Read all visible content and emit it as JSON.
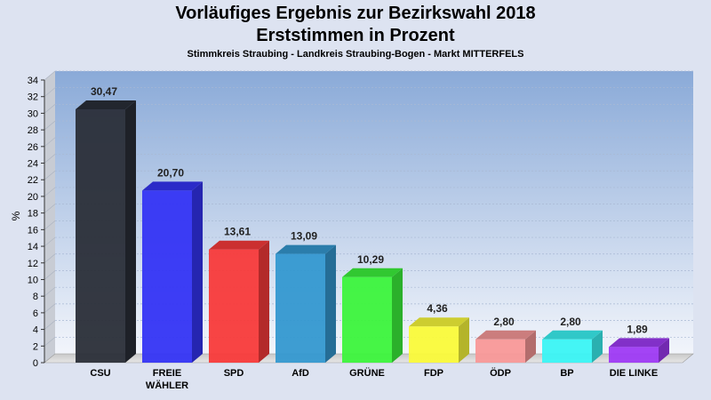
{
  "chart_data": {
    "type": "bar",
    "title": "Vorläufiges Ergebnis zur Bezirkswahl 2018",
    "subtitle": "Erststimmen in Prozent",
    "caption": "Stimmkreis Straubing - Landkreis Straubing-Bogen - Markt MITTERFELS",
    "ylabel": "%",
    "xlabel": "",
    "ylim": [
      0,
      34
    ],
    "yticks": [
      0,
      2,
      4,
      6,
      8,
      10,
      12,
      14,
      16,
      18,
      20,
      22,
      24,
      26,
      28,
      30,
      32,
      34
    ],
    "grid": true,
    "categories": [
      "CSU",
      "FREIE WÄHLER",
      "SPD",
      "AfD",
      "GRÜNE",
      "FDP",
      "ÖDP",
      "BP",
      "DIE LINKE"
    ],
    "category_lines": [
      [
        "CSU"
      ],
      [
        "FREIE",
        "WÄHLER"
      ],
      [
        "SPD"
      ],
      [
        "AfD"
      ],
      [
        "GRÜNE"
      ],
      [
        "FDP"
      ],
      [
        "ÖDP"
      ],
      [
        "BP"
      ],
      [
        "DIE LINKE"
      ]
    ],
    "values": [
      30.47,
      20.7,
      13.61,
      13.09,
      10.29,
      4.36,
      2.8,
      2.8,
      1.89
    ],
    "value_labels": [
      "30,47",
      "20,70",
      "13,61",
      "13,09",
      "10,29",
      "4,36",
      "2,80",
      "2,80",
      "1,89"
    ],
    "colors": [
      "#2a2e38",
      "#3434f4",
      "#f83a3a",
      "#3498d0",
      "#3cf43c",
      "#fafa3a",
      "#f89898",
      "#3af4f4",
      "#9e3af4"
    ]
  }
}
